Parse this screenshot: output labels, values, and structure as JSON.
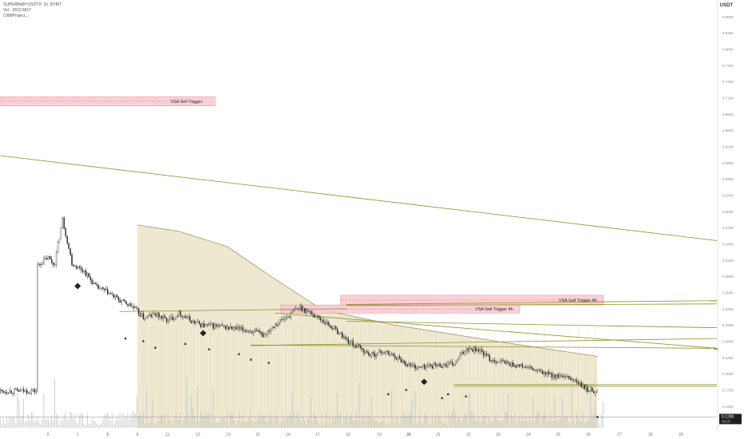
{
  "header": {
    "symbol_line": "SUPERBABYUSDT.P, 1h, BYBIT",
    "volume_line": "Vol · 2813.581T",
    "indicator_line": "CWBProject..."
  },
  "axis_unit": "USDT",
  "price_labels": {
    "last_price": "0.1200",
    "countdown": "28:37"
  },
  "colors": {
    "background": "#ffffff",
    "candle": "#1f1f1f",
    "volume_bar": "#b8b8b8",
    "shaded_area": "#ebe4c9",
    "trendline": "#8f8f2a",
    "zone_fill": "#f7c9cc",
    "zone_border": "#e58a91",
    "signal_marker": "#222222",
    "last_price_line": "#888888"
  },
  "chart_data": {
    "type": "candlestick",
    "x": [
      "9",
      "1",
      "8",
      "9",
      "11",
      "12",
      "13",
      "15",
      "16",
      "17",
      "18",
      "19",
      "20",
      "21",
      "22",
      "23",
      "24",
      "25",
      "26",
      "27",
      "28",
      "29"
    ],
    "ylim": [
      0.1,
      0.87
    ],
    "y_ticks": [
      "0.8600",
      "0.8300",
      "0.8000",
      "0.7700",
      "0.7400",
      "0.7100",
      "0.6800",
      "0.6500",
      "0.6200",
      "0.5900",
      "0.5600",
      "0.5300",
      "0.5000",
      "0.4700",
      "0.4400",
      "0.4100",
      "0.3800",
      "0.3500",
      "0.3200",
      "0.2900",
      "0.2600",
      "0.2300",
      "0.2000",
      "0.1700",
      "0.1400",
      "0.1100"
    ],
    "close_path": [
      [
        0,
        0.398
      ],
      [
        1,
        0.415
      ],
      [
        1.5,
        0.4
      ],
      [
        2.2,
        0.485
      ],
      [
        3,
        0.403
      ],
      [
        4,
        0.39
      ],
      [
        5,
        0.36
      ],
      [
        6,
        0.35
      ],
      [
        7,
        0.335
      ],
      [
        8,
        0.325
      ],
      [
        9,
        0.303
      ],
      [
        10,
        0.31
      ],
      [
        11,
        0.298
      ],
      [
        12,
        0.312
      ],
      [
        13,
        0.297
      ],
      [
        14,
        0.289
      ],
      [
        15,
        0.288
      ],
      [
        16,
        0.285
      ],
      [
        17,
        0.282
      ],
      [
        18,
        0.279
      ],
      [
        19,
        0.271
      ],
      [
        20,
        0.292
      ],
      [
        21,
        0.305
      ],
      [
        22,
        0.323
      ],
      [
        23,
        0.312
      ],
      [
        24,
        0.298
      ],
      [
        25,
        0.282
      ],
      [
        26,
        0.262
      ],
      [
        27,
        0.248
      ],
      [
        28,
        0.234
      ],
      [
        29,
        0.241
      ],
      [
        30,
        0.233
      ],
      [
        31,
        0.218
      ],
      [
        32,
        0.211
      ],
      [
        33,
        0.215
      ],
      [
        34,
        0.216
      ],
      [
        35,
        0.218
      ],
      [
        36,
        0.247
      ],
      [
        37,
        0.245
      ],
      [
        38,
        0.226
      ],
      [
        39,
        0.222
      ],
      [
        40,
        0.216
      ],
      [
        41,
        0.212
      ],
      [
        42,
        0.204
      ],
      [
        43,
        0.198
      ],
      [
        44,
        0.193
      ],
      [
        45,
        0.189
      ],
      [
        46,
        0.171
      ],
      [
        47,
        0.168
      ]
    ],
    "shaded_area_upper": [
      [
        8.5,
        0.475
      ],
      [
        12,
        0.463
      ],
      [
        16,
        0.435
      ],
      [
        20,
        0.375
      ],
      [
        24,
        0.318
      ],
      [
        30,
        0.29
      ],
      [
        40,
        0.255
      ],
      [
        47,
        0.232
      ]
    ],
    "trendlines": [
      {
        "points": [
          [
            -3,
            0.603
          ],
          [
            57,
            0.446
          ]
        ]
      },
      {
        "points": [
          [
            7,
            0.315
          ],
          [
            26,
            0.32
          ]
        ]
      },
      {
        "points": [
          [
            20,
            0.312
          ],
          [
            57,
            0.247
          ]
        ]
      },
      {
        "points": [
          [
            18,
            0.253
          ],
          [
            57,
            0.247
          ]
        ]
      },
      {
        "points": [
          [
            26,
            0.297
          ],
          [
            57,
            0.285
          ]
        ]
      },
      {
        "points": [
          [
            26,
            0.328
          ],
          [
            57,
            0.335
          ]
        ]
      },
      {
        "points": [
          [
            18,
            0.252
          ],
          [
            57,
            0.265
          ]
        ]
      },
      {
        "points": [
          [
            26,
            0.326
          ],
          [
            57,
            0.329
          ]
        ]
      },
      {
        "points": [
          [
            35,
            0.18
          ],
          [
            57,
            0.18
          ]
        ]
      },
      {
        "points": [
          [
            35,
            0.177
          ],
          [
            57,
            0.177
          ]
        ]
      }
    ],
    "zones": [
      {
        "label": "VSA Sell Trigger",
        "x0": -3,
        "x1": 15,
        "y_top": 0.712,
        "y_bottom": 0.695
      },
      {
        "label": "VSA Sell Trigger 4h",
        "x0": 25.5,
        "x1": 47.5,
        "y_top": 0.345,
        "y_bottom": 0.327
      },
      {
        "label": "VSA Sell Trigger 4h",
        "x0": 20.5,
        "x1": 40.5,
        "y_top": 0.327,
        "y_bottom": 0.312
      }
    ],
    "line_label": "Bu",
    "last_price": 0.12,
    "sell_signals": [
      [
        3.5,
        0.362
      ],
      [
        14,
        0.275
      ],
      [
        32.5,
        0.185
      ]
    ],
    "triangle_markers": [
      [
        7.5,
        0.265
      ],
      [
        9,
        0.26
      ],
      [
        10,
        0.248
      ],
      [
        12.5,
        0.255
      ],
      [
        14.5,
        0.245
      ],
      [
        17,
        0.236
      ],
      [
        18,
        0.226
      ],
      [
        19.5,
        0.22
      ],
      [
        29.5,
        0.162
      ],
      [
        31,
        0.17
      ],
      [
        34,
        0.155
      ],
      [
        34.5,
        0.162
      ],
      [
        36,
        0.158
      ],
      [
        47,
        0.12
      ]
    ]
  }
}
